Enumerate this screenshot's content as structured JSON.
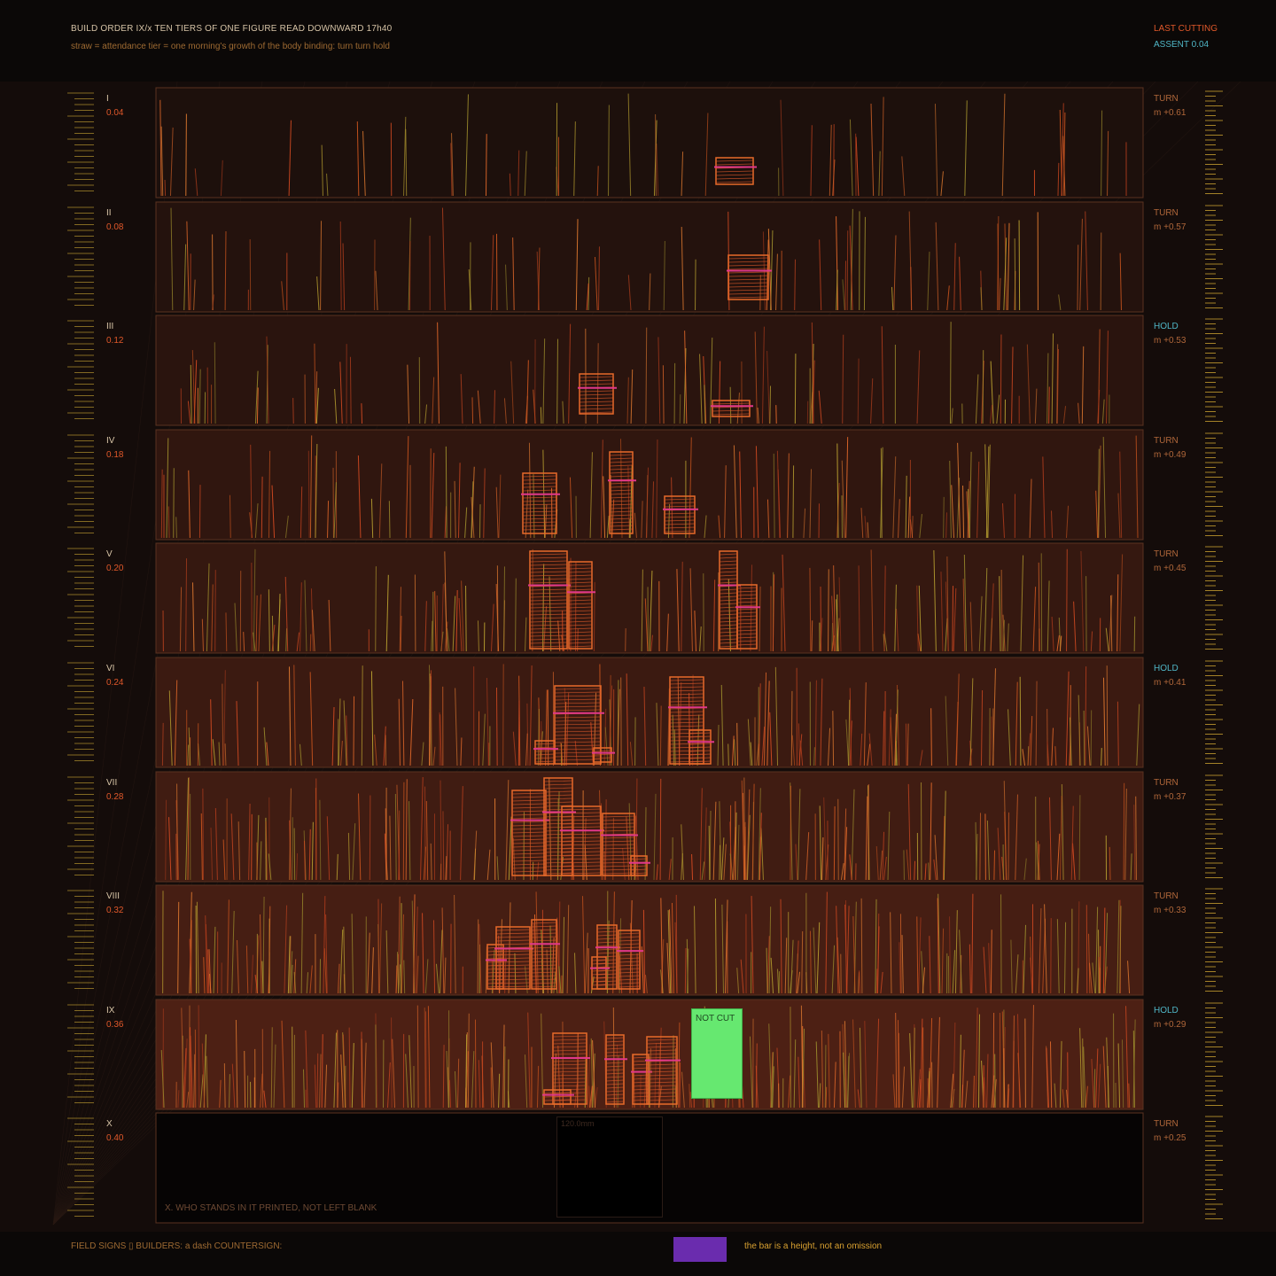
{
  "header": {
    "title": "BUILD ORDER IX/x   TEN TIERS OF ONE FIGURE   READ DOWNWARD   17h40",
    "subtitle": "straw = attendance   tier = one morning's growth of the body   binding: turn turn hold",
    "last_cutting": "LAST CUTTING",
    "assent": "ASSENT 0.04"
  },
  "tiers": [
    {
      "numeral": "I",
      "value": "0.04",
      "binding": "TURN",
      "m": "m +0.61"
    },
    {
      "numeral": "II",
      "value": "0.08",
      "binding": "TURN",
      "m": "m +0.57"
    },
    {
      "numeral": "III",
      "value": "0.12",
      "binding": "HOLD",
      "m": "m +0.53"
    },
    {
      "numeral": "IV",
      "value": "0.18",
      "binding": "TURN",
      "m": "m +0.49"
    },
    {
      "numeral": "V",
      "value": "0.20",
      "binding": "TURN",
      "m": "m +0.45"
    },
    {
      "numeral": "VI",
      "value": "0.24",
      "binding": "HOLD",
      "m": "m +0.41"
    },
    {
      "numeral": "VII",
      "value": "0.28",
      "binding": "TURN",
      "m": "m +0.37"
    },
    {
      "numeral": "VIII",
      "value": "0.32",
      "binding": "TURN",
      "m": "m +0.33"
    },
    {
      "numeral": "IX",
      "value": "0.36",
      "binding": "HOLD",
      "m": "m +0.29"
    },
    {
      "numeral": "X",
      "value": "0.40",
      "binding": "TURN",
      "m": "m +0.25"
    }
  ],
  "not_cut_label": "NOT CUT",
  "tier_x": {
    "box_label": "120.0mm",
    "note": "X. WHO STANDS IN IT   PRINTED, NOT LEFT BLANK"
  },
  "footer": {
    "left": "FIELD SIGNS ▯   BUILDERS: a dash   COUNTERSIGN:",
    "note": "the bar is a height, not an omission"
  },
  "colors": {
    "background": "#0c0808",
    "accent_orange": "#e0582a",
    "accent_cyan": "#4fb6c6",
    "not_cut_green": "#66e870",
    "swatch_purple": "#6a2cae",
    "marker_pink": "#e0388a"
  }
}
